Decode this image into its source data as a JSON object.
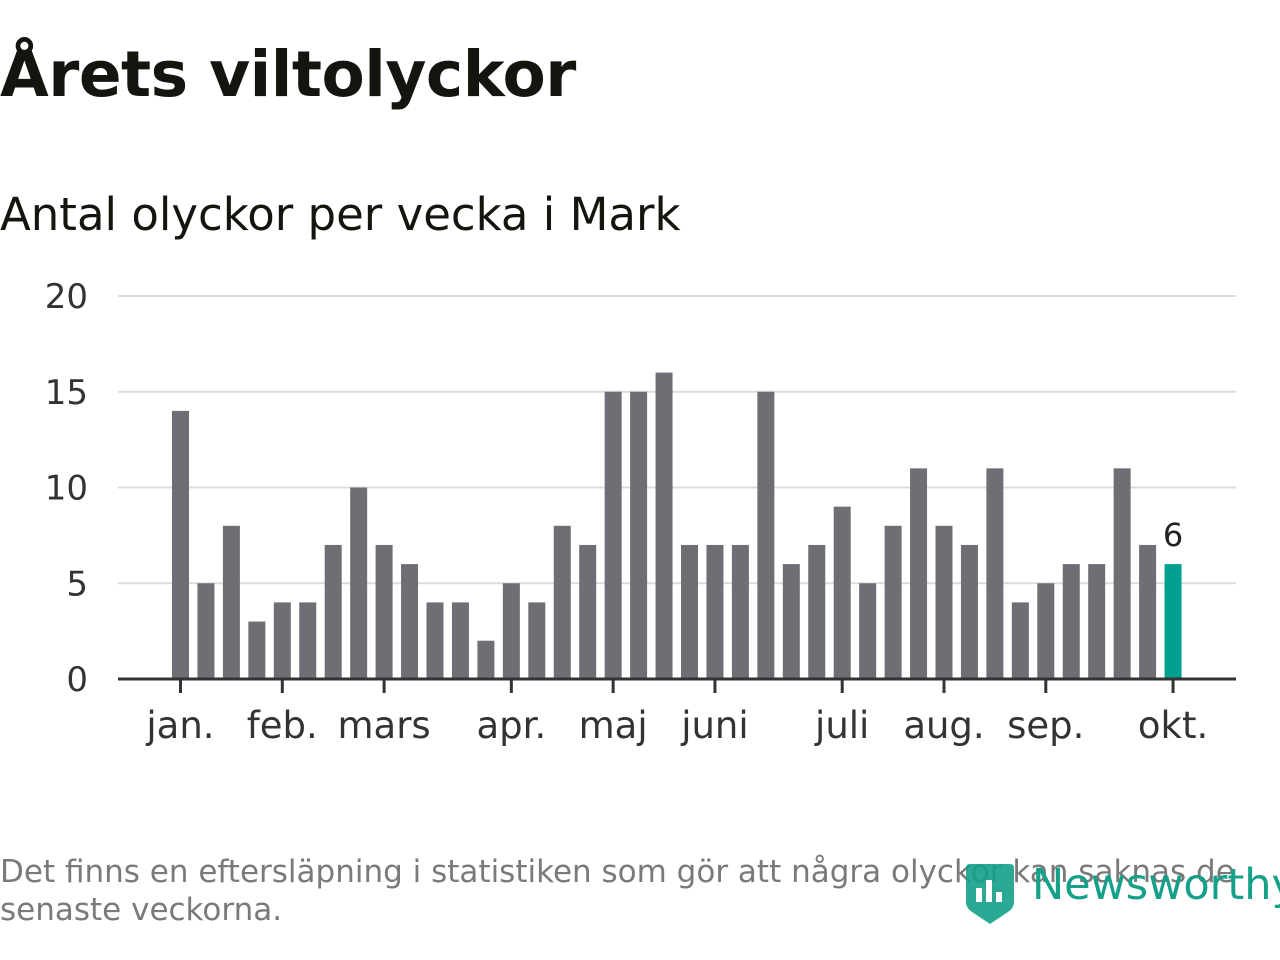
{
  "header": {
    "title": "Årets viltolyckor",
    "subtitle": "Antal olyckor per vecka i Mark"
  },
  "chart_data": {
    "type": "bar",
    "values": [
      14,
      5,
      8,
      3,
      4,
      4,
      7,
      10,
      7,
      6,
      4,
      4,
      2,
      5,
      4,
      8,
      7,
      15,
      15,
      16,
      7,
      7,
      7,
      15,
      6,
      7,
      9,
      5,
      8,
      11,
      8,
      7,
      11,
      4,
      5,
      6,
      6,
      11,
      7,
      6
    ],
    "highlight_index": 39,
    "highlight_label": "6",
    "ylim": [
      0,
      20
    ],
    "yticks": [
      0,
      5,
      10,
      15,
      20
    ],
    "month_labels": [
      {
        "label": "jan.",
        "bar_index": 0
      },
      {
        "label": "feb.",
        "bar_index": 4
      },
      {
        "label": "mars",
        "bar_index": 8
      },
      {
        "label": "apr.",
        "bar_index": 13
      },
      {
        "label": "maj",
        "bar_index": 17
      },
      {
        "label": "juni",
        "bar_index": 21
      },
      {
        "label": "juli",
        "bar_index": 26
      },
      {
        "label": "aug.",
        "bar_index": 30
      },
      {
        "label": "sep.",
        "bar_index": 34
      },
      {
        "label": "okt.",
        "bar_index": 39
      }
    ],
    "grid": true,
    "bar_color": "#6f6e74",
    "highlight_color": "#009f8f",
    "grid_color": "#dcdcdc"
  },
  "footer": {
    "note": "Det finns en eftersläpning i statistiken som gör att några olyckor kan saknas de senaste veckorna.",
    "brand": "Newsworthy",
    "brand_icon": "newsworthy-logo-icon",
    "brand_color": "#14a089"
  }
}
